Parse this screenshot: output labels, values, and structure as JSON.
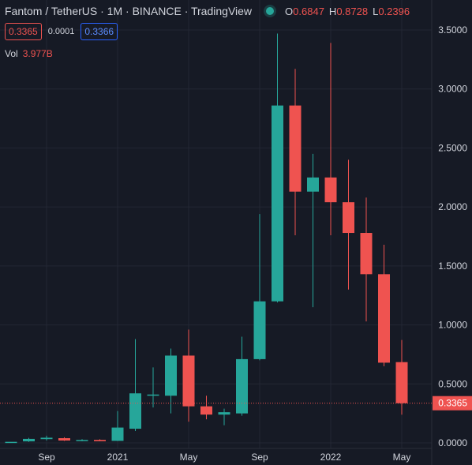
{
  "header": {
    "title": "Fantom / TetherUS · 1M · BINANCE · TradingView",
    "ohlc": [
      {
        "k": "O",
        "v": "0.6847"
      },
      {
        "k": "H",
        "v": "0.8728"
      },
      {
        "k": "L",
        "v": "0.2396"
      }
    ],
    "bid": "0.3365",
    "spread": "0.0001",
    "ask": "0.3366",
    "volume_label": "Vol",
    "volume_value": "3.977B"
  },
  "colors": {
    "up": "#26a69a",
    "down": "#ef5350",
    "bg": "#161a25",
    "grid": "#232734"
  },
  "chart_data": {
    "type": "candlestick",
    "y_axis": {
      "min": 0,
      "max": 3.6,
      "ticks": [
        "0.0000",
        "0.5000",
        "1.0000",
        "1.5000",
        "2.0000",
        "2.5000",
        "3.0000",
        "3.5000"
      ],
      "position": "right"
    },
    "x_axis": {
      "ticks": [
        {
          "label": "Sep",
          "index": 2
        },
        {
          "label": "2021",
          "index": 6
        },
        {
          "label": "May",
          "index": 10
        },
        {
          "label": "Sep",
          "index": 14
        },
        {
          "label": "2022",
          "index": 18
        },
        {
          "label": "May",
          "index": 22
        }
      ]
    },
    "last_price": "0.3365",
    "candles": [
      {
        "o": 0.003,
        "h": 0.006,
        "l": 0.001,
        "c": 0.009
      },
      {
        "o": 0.013,
        "h": 0.043,
        "l": 0.008,
        "c": 0.034
      },
      {
        "o": 0.032,
        "h": 0.061,
        "l": 0.02,
        "c": 0.044
      },
      {
        "o": 0.04,
        "h": 0.048,
        "l": 0.017,
        "c": 0.02
      },
      {
        "o": 0.018,
        "h": 0.032,
        "l": 0.013,
        "c": 0.025
      },
      {
        "o": 0.025,
        "h": 0.031,
        "l": 0.013,
        "c": 0.014
      },
      {
        "o": 0.017,
        "h": 0.27,
        "l": 0.016,
        "c": 0.13
      },
      {
        "o": 0.12,
        "h": 0.88,
        "l": 0.1,
        "c": 0.42
      },
      {
        "o": 0.41,
        "h": 0.64,
        "l": 0.3,
        "c": 0.41
      },
      {
        "o": 0.4,
        "h": 0.8,
        "l": 0.25,
        "c": 0.74
      },
      {
        "o": 0.74,
        "h": 0.96,
        "l": 0.18,
        "c": 0.31
      },
      {
        "o": 0.31,
        "h": 0.4,
        "l": 0.2,
        "c": 0.24
      },
      {
        "o": 0.24,
        "h": 0.29,
        "l": 0.15,
        "c": 0.26
      },
      {
        "o": 0.25,
        "h": 0.9,
        "l": 0.23,
        "c": 0.71
      },
      {
        "o": 0.71,
        "h": 1.94,
        "l": 0.7,
        "c": 1.2
      },
      {
        "o": 1.2,
        "h": 3.47,
        "l": 1.19,
        "c": 2.86
      },
      {
        "o": 2.86,
        "h": 3.17,
        "l": 1.76,
        "c": 2.13
      },
      {
        "o": 2.13,
        "h": 2.45,
        "l": 1.15,
        "c": 2.25
      },
      {
        "o": 2.25,
        "h": 3.39,
        "l": 1.76,
        "c": 2.04
      },
      {
        "o": 2.04,
        "h": 2.4,
        "l": 1.3,
        "c": 1.78
      },
      {
        "o": 1.78,
        "h": 2.08,
        "l": 1.03,
        "c": 1.43
      },
      {
        "o": 1.43,
        "h": 1.68,
        "l": 0.65,
        "c": 0.68
      },
      {
        "o": 0.6847,
        "h": 0.8728,
        "l": 0.2396,
        "c": 0.3365
      }
    ]
  }
}
